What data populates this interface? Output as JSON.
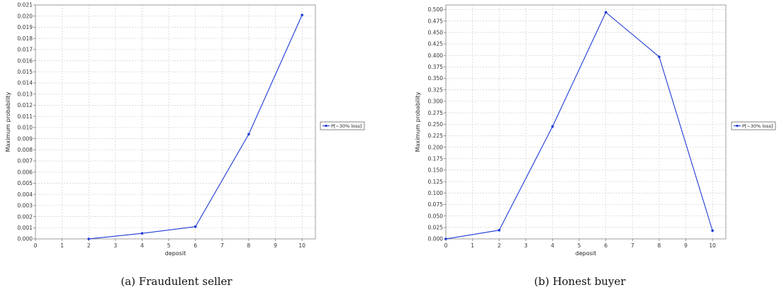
{
  "captions": [
    "(a) Fraudulent seller",
    "(b) Honest buyer"
  ],
  "chart_data": [
    {
      "type": "line",
      "xlabel": "deposit",
      "ylabel": "Maximum probability",
      "xlim": [
        0,
        10.5
      ],
      "ylim": [
        0,
        0.021
      ],
      "xticks": [
        "0",
        "1",
        "2",
        "3",
        "4",
        "5",
        "6",
        "7",
        "8",
        "9",
        "10"
      ],
      "yticks": [
        "0.000",
        "0.001",
        "0.002",
        "0.003",
        "0.004",
        "0.005",
        "0.006",
        "0.007",
        "0.008",
        "0.009",
        "0.010",
        "0.011",
        "0.012",
        "0.013",
        "0.014",
        "0.015",
        "0.016",
        "0.017",
        "0.018",
        "0.019",
        "0.020",
        "0.021"
      ],
      "grid": true,
      "legend": "right",
      "series": [
        {
          "name": "P[~30% loss]",
          "color": "#1f3bd6",
          "x": [
            2,
            4,
            6,
            8,
            10
          ],
          "y": [
            0.0,
            0.0005,
            0.0011,
            0.0094,
            0.0201
          ]
        }
      ]
    },
    {
      "type": "line",
      "xlabel": "deposit",
      "ylabel": "Maximum probability",
      "xlim": [
        0,
        10.5
      ],
      "ylim": [
        0,
        0.51
      ],
      "xticks": [
        "0",
        "1",
        "2",
        "3",
        "4",
        "5",
        "6",
        "7",
        "8",
        "9",
        "10"
      ],
      "yticks": [
        "0.000",
        "0.025",
        "0.050",
        "0.075",
        "0.100",
        "0.125",
        "0.150",
        "0.175",
        "0.200",
        "0.225",
        "0.250",
        "0.275",
        "0.300",
        "0.325",
        "0.350",
        "0.375",
        "0.400",
        "0.425",
        "0.450",
        "0.475",
        "0.500"
      ],
      "grid": true,
      "legend": "right",
      "series": [
        {
          "name": "P[~30% loss]",
          "color": "#1f3bd6",
          "x": [
            0,
            2,
            4,
            6,
            8,
            10
          ],
          "y": [
            0.0,
            0.019,
            0.245,
            0.494,
            0.397,
            0.018
          ]
        }
      ]
    }
  ]
}
